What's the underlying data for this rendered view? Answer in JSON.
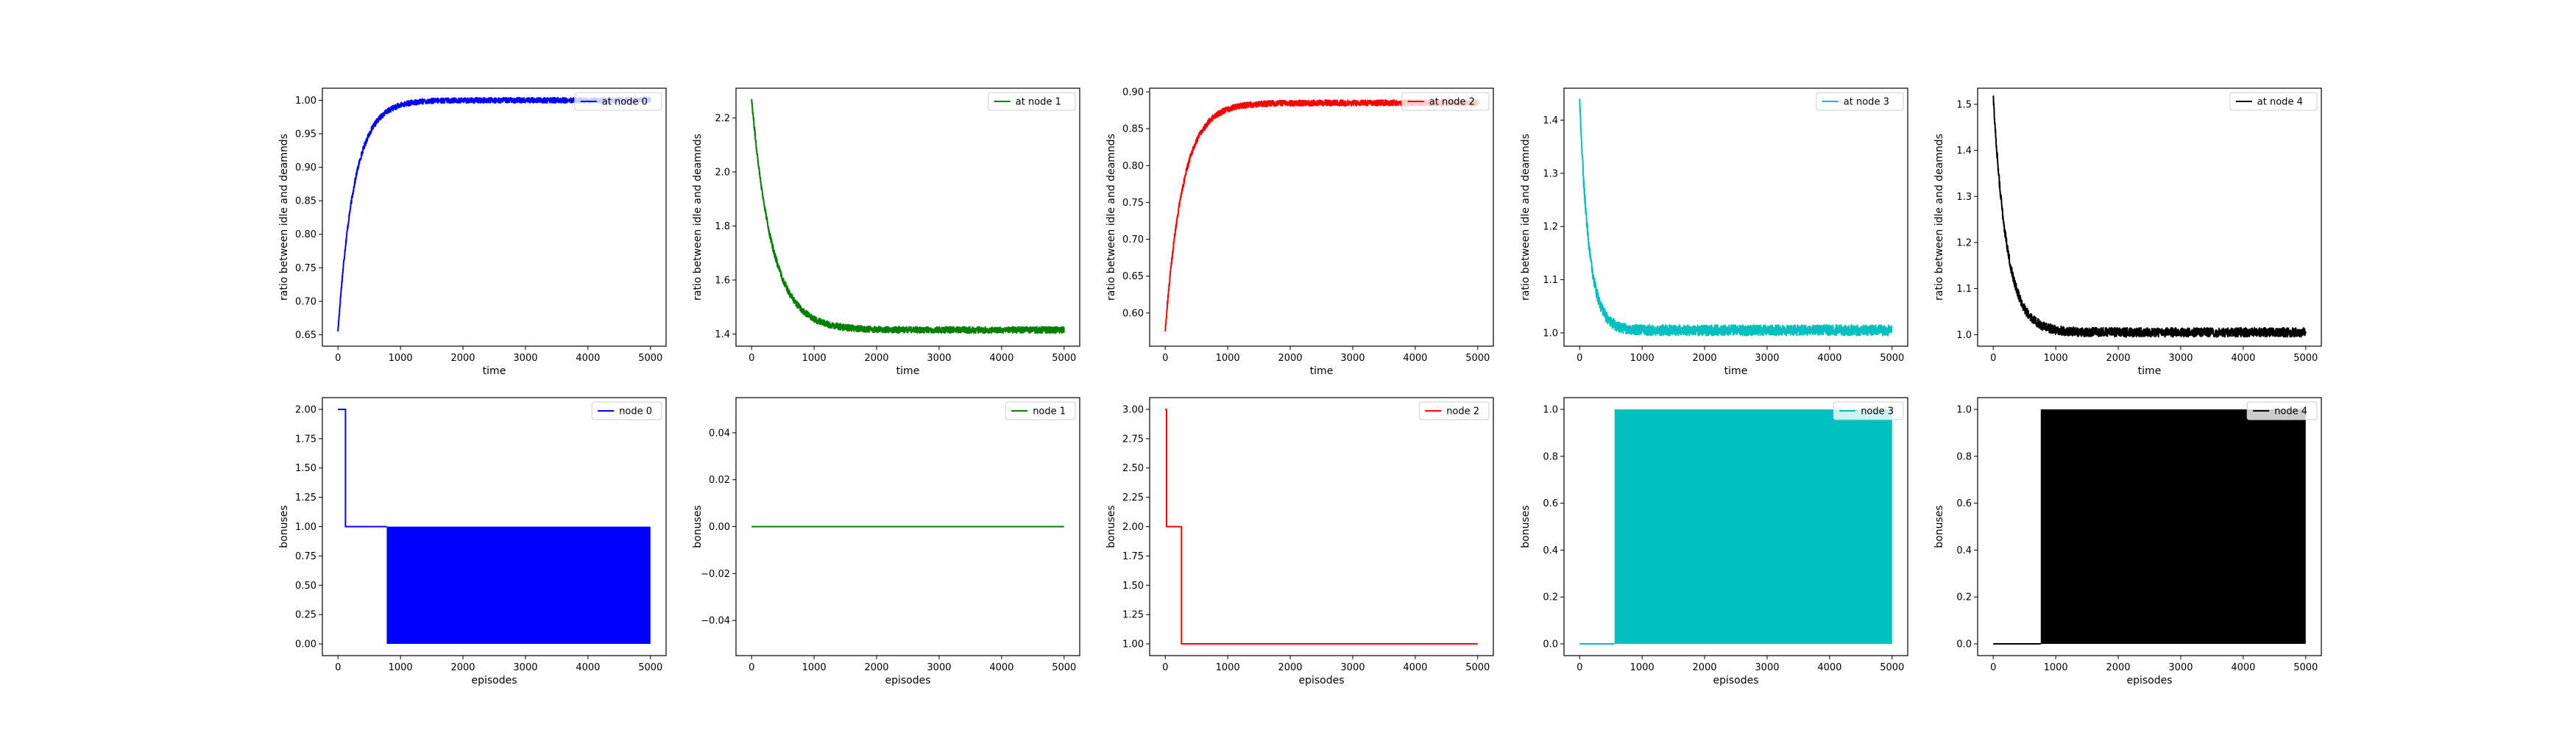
{
  "figure": {
    "colors": {
      "node0": "#0000ff",
      "node1": "#008000",
      "node2": "#ff0000",
      "node3": "#00bfbf",
      "node4": "#000000"
    }
  },
  "chart_data": [
    {
      "type": "line",
      "id": "top-0",
      "xlabel": "time",
      "ylabel": "ratio between idle and deamnds",
      "xlim": [
        -250,
        5250
      ],
      "ylim": [
        0.633,
        1.018
      ],
      "xticks": [
        0,
        1000,
        2000,
        3000,
        4000,
        5000
      ],
      "yticks": [
        0.65,
        0.7,
        0.75,
        0.8,
        0.85,
        0.9,
        0.95,
        1.0
      ],
      "ytick_labels": [
        "0.65",
        "0.70",
        "0.75",
        "0.80",
        "0.85",
        "0.90",
        "0.95",
        "1.00"
      ],
      "legend": {
        "label": "at node 0",
        "position": "top-right"
      },
      "color": "#0000ff",
      "series": {
        "shape": "rise",
        "start": 0.655,
        "end": 1.0,
        "tau": 260,
        "noise": 0.004,
        "x_max": 5000
      }
    },
    {
      "type": "line",
      "id": "top-1",
      "xlabel": "time",
      "ylabel": "ratio between idle and deamnds",
      "xlim": [
        -250,
        5250
      ],
      "ylim": [
        1.355,
        2.31
      ],
      "xticks": [
        0,
        1000,
        2000,
        3000,
        4000,
        5000
      ],
      "yticks": [
        1.4,
        1.6,
        1.8,
        2.0,
        2.2
      ],
      "ytick_labels": [
        "1.4",
        "1.6",
        "1.8",
        "2.0",
        "2.2"
      ],
      "legend": {
        "label": "at node 1",
        "position": "top-right"
      },
      "color": "#008000",
      "series": {
        "shape": "decay",
        "start": 2.27,
        "end": 1.415,
        "tau": 330,
        "noise": 0.012,
        "x_max": 5000
      }
    },
    {
      "type": "line",
      "id": "top-2",
      "xlabel": "time",
      "ylabel": "ratio between idle and deamnds",
      "xlim": [
        -250,
        5250
      ],
      "ylim": [
        0.555,
        0.905
      ],
      "xticks": [
        0,
        1000,
        2000,
        3000,
        4000,
        5000
      ],
      "yticks": [
        0.6,
        0.65,
        0.7,
        0.75,
        0.8,
        0.85,
        0.9
      ],
      "ytick_labels": [
        "0.60",
        "0.65",
        "0.70",
        "0.75",
        "0.80",
        "0.85",
        "0.90"
      ],
      "legend": {
        "label": "at node 2",
        "position": "top-right"
      },
      "color": "#ff0000",
      "series": {
        "shape": "rise",
        "start": 0.575,
        "end": 0.885,
        "tau": 280,
        "noise": 0.004,
        "x_max": 5000
      }
    },
    {
      "type": "line",
      "id": "top-3",
      "xlabel": "time",
      "ylabel": "ratio between idle and deamnds",
      "xlim": [
        -250,
        5250
      ],
      "ylim": [
        0.975,
        1.46
      ],
      "xticks": [
        0,
        1000,
        2000,
        3000,
        4000,
        5000
      ],
      "yticks": [
        1.0,
        1.1,
        1.2,
        1.3,
        1.4
      ],
      "ytick_labels": [
        "1.0",
        "1.1",
        "1.2",
        "1.3",
        "1.4"
      ],
      "legend": {
        "label": "at node 3",
        "position": "top-right"
      },
      "color": "#00bfbf",
      "series": {
        "shape": "decay",
        "start": 1.44,
        "end": 1.005,
        "tau": 150,
        "noise": 0.01,
        "x_max": 5000
      }
    },
    {
      "type": "line",
      "id": "top-4",
      "xlabel": "time",
      "ylabel": "ratio between idle and deamnds",
      "xlim": [
        -250,
        5250
      ],
      "ylim": [
        0.975,
        1.535
      ],
      "xticks": [
        0,
        1000,
        2000,
        3000,
        4000,
        5000
      ],
      "yticks": [
        1.0,
        1.1,
        1.2,
        1.3,
        1.4,
        1.5
      ],
      "ytick_labels": [
        "1.0",
        "1.1",
        "1.2",
        "1.3",
        "1.4",
        "1.5"
      ],
      "legend": {
        "label": "at node 4",
        "position": "top-right"
      },
      "color": "#000000",
      "series": {
        "shape": "decay",
        "start": 1.515,
        "end": 1.005,
        "tau": 220,
        "noise": 0.01,
        "x_max": 5000
      }
    },
    {
      "type": "line",
      "id": "bottom-0",
      "xlabel": "episodes",
      "ylabel": "bonuses",
      "xlim": [
        -250,
        5250
      ],
      "ylim": [
        -0.1,
        2.1
      ],
      "xticks": [
        0,
        1000,
        2000,
        3000,
        4000,
        5000
      ],
      "yticks": [
        0.0,
        0.25,
        0.5,
        0.75,
        1.0,
        1.25,
        1.5,
        1.75,
        2.0
      ],
      "ytick_labels": [
        "0.00",
        "0.25",
        "0.50",
        "0.75",
        "1.00",
        "1.25",
        "1.50",
        "1.75",
        "2.00"
      ],
      "legend": {
        "label": "node 0",
        "position": "top-right"
      },
      "color": "#0000ff",
      "steps": [
        [
          0,
          2
        ],
        [
          120,
          2
        ],
        [
          120,
          1
        ],
        [
          780,
          1
        ]
      ],
      "band": {
        "x0": 780,
        "x1": 5000,
        "y0": 0,
        "y1": 1
      }
    },
    {
      "type": "line",
      "id": "bottom-1",
      "xlabel": "episodes",
      "ylabel": "bonuses",
      "xlim": [
        -250,
        5250
      ],
      "ylim": [
        -0.055,
        0.055
      ],
      "xticks": [
        0,
        1000,
        2000,
        3000,
        4000,
        5000
      ],
      "yticks": [
        -0.04,
        -0.02,
        0.0,
        0.02,
        0.04
      ],
      "ytick_labels": [
        "−0.04",
        "−0.02",
        "0.00",
        "0.02",
        "0.04"
      ],
      "legend": {
        "label": "node 1",
        "position": "top-right"
      },
      "color": "#008000",
      "steps": [
        [
          0,
          0
        ],
        [
          5000,
          0
        ]
      ]
    },
    {
      "type": "line",
      "id": "bottom-2",
      "xlabel": "episodes",
      "ylabel": "bonuses",
      "xlim": [
        -250,
        5250
      ],
      "ylim": [
        0.9,
        3.1
      ],
      "xticks": [
        0,
        1000,
        2000,
        3000,
        4000,
        5000
      ],
      "yticks": [
        1.0,
        1.25,
        1.5,
        1.75,
        2.0,
        2.25,
        2.5,
        2.75,
        3.0
      ],
      "ytick_labels": [
        "1.00",
        "1.25",
        "1.50",
        "1.75",
        "2.00",
        "2.25",
        "2.50",
        "2.75",
        "3.00"
      ],
      "legend": {
        "label": "node 2",
        "position": "top-right"
      },
      "color": "#ff0000",
      "steps": [
        [
          0,
          3
        ],
        [
          20,
          3
        ],
        [
          20,
          2
        ],
        [
          260,
          2
        ],
        [
          260,
          1
        ],
        [
          5000,
          1
        ]
      ]
    },
    {
      "type": "line",
      "id": "bottom-3",
      "xlabel": "episodes",
      "ylabel": "bonuses",
      "xlim": [
        -250,
        5250
      ],
      "ylim": [
        -0.05,
        1.05
      ],
      "xticks": [
        0,
        1000,
        2000,
        3000,
        4000,
        5000
      ],
      "yticks": [
        0.0,
        0.2,
        0.4,
        0.6,
        0.8,
        1.0
      ],
      "ytick_labels": [
        "0.0",
        "0.2",
        "0.4",
        "0.6",
        "0.8",
        "1.0"
      ],
      "legend": {
        "label": "node 3",
        "position": "top-right"
      },
      "color": "#00bfbf",
      "steps": [
        [
          0,
          0
        ],
        [
          560,
          0
        ]
      ],
      "band": {
        "x0": 560,
        "x1": 5000,
        "y0": 0,
        "y1": 1
      }
    },
    {
      "type": "line",
      "id": "bottom-4",
      "xlabel": "episodes",
      "ylabel": "bonuses",
      "xlim": [
        -250,
        5250
      ],
      "ylim": [
        -0.05,
        1.05
      ],
      "xticks": [
        0,
        1000,
        2000,
        3000,
        4000,
        5000
      ],
      "yticks": [
        0.0,
        0.2,
        0.4,
        0.6,
        0.8,
        1.0
      ],
      "ytick_labels": [
        "0.0",
        "0.2",
        "0.4",
        "0.6",
        "0.8",
        "1.0"
      ],
      "legend": {
        "label": "node 4",
        "position": "top-right"
      },
      "color": "#000000",
      "steps": [
        [
          0,
          0
        ],
        [
          760,
          0
        ]
      ],
      "band": {
        "x0": 760,
        "x1": 5000,
        "y0": 0,
        "y1": 1
      }
    }
  ]
}
